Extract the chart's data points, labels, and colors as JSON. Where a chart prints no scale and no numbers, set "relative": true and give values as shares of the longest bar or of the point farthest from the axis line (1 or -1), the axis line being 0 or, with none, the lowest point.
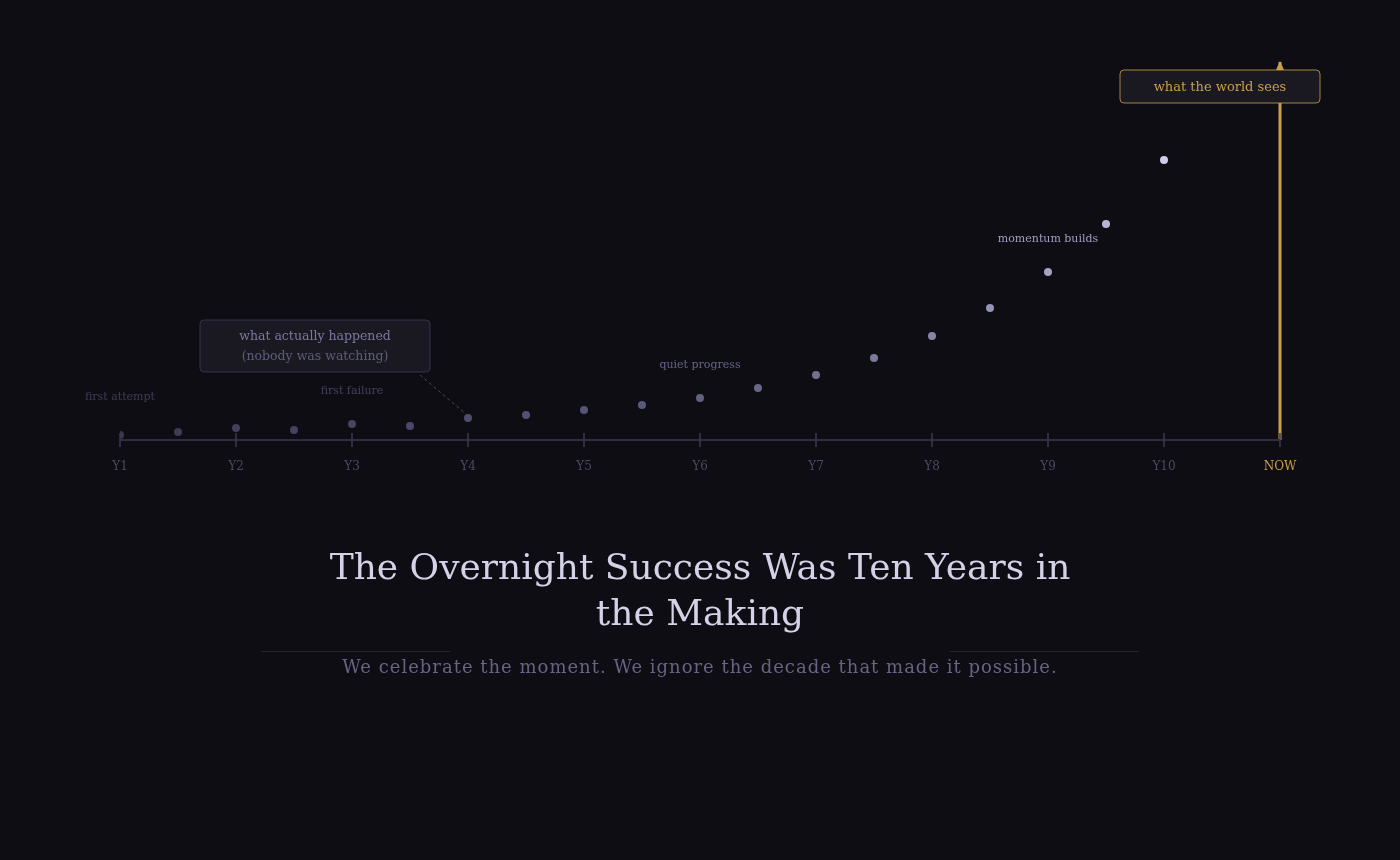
{
  "chart_data": {
    "type": "scatter",
    "title": "The Overnight Success Was Ten Years in the Making",
    "subtitle": "We celebrate the moment. We ignore the decade that made it possible.",
    "relative": true,
    "marker": "circle",
    "categories": [
      "Y1",
      null,
      "Y2",
      null,
      "Y3",
      null,
      "Y4",
      null,
      "Y5",
      null,
      "Y6",
      null,
      "Y7",
      null,
      "Y8",
      null,
      "Y9",
      null,
      "Y10",
      null,
      "NOW"
    ],
    "values": [
      0.018,
      0.029,
      0.043,
      0.036,
      0.057,
      0.05,
      0.079,
      0.089,
      0.107,
      0.125,
      0.15,
      0.186,
      0.232,
      0.293,
      0.371,
      0.471,
      0.6,
      0.771,
      1,
      null,
      null
    ],
    "colors": [
      "#3a3850",
      "#3d3b55",
      "#413f5a",
      "#44425e",
      "#484662",
      "#4b4967",
      "#4f4d6c",
      "#535170",
      "#575575",
      "#5b597a",
      "#62607f",
      "#696786",
      "#72708f",
      "#7c7a99",
      "#8886a6",
      "#9593b4",
      "#a5a3c4",
      "#b8b6d6",
      "#d0cde8",
      null,
      null
    ],
    "annotations": [
      "first attempt",
      "first failure",
      "what actually happened\n(nobody was watching)",
      "quiet progress",
      "momentum builds"
    ],
    "ref_lines": [
      {
        "axis": "x",
        "value": "NOW",
        "label": "what the world sees",
        "color": "#c9a04a"
      }
    ]
  }
}
